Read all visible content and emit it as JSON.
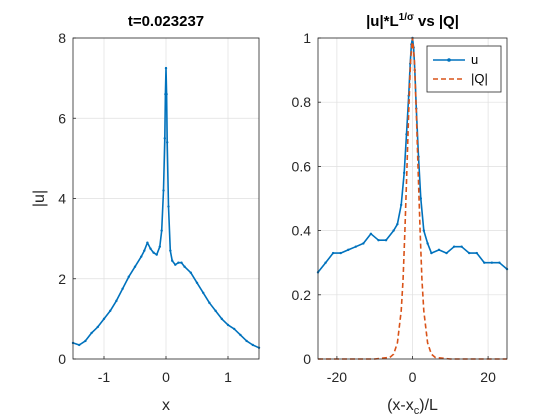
{
  "chart_data": [
    {
      "type": "line",
      "title": "t=0.023237",
      "xlabel": "x",
      "ylabel": "|u|",
      "xlim": [
        -1.5,
        1.5
      ],
      "ylim": [
        0,
        8
      ],
      "xticks": [
        -1,
        0,
        1
      ],
      "xtick_labels": [
        "-1",
        "0",
        "1"
      ],
      "yticks": [
        0,
        2,
        4,
        6,
        8
      ],
      "ytick_labels": [
        "0",
        "2",
        "4",
        "6",
        "8"
      ],
      "grid": true,
      "series": [
        {
          "color": "#0072bd",
          "marker": "dot",
          "x": [
            -1.5,
            -1.4,
            -1.3,
            -1.2,
            -1.1,
            -1.0,
            -0.9,
            -0.8,
            -0.7,
            -0.6,
            -0.5,
            -0.4,
            -0.35,
            -0.3,
            -0.25,
            -0.2,
            -0.15,
            -0.1,
            -0.07,
            -0.04,
            -0.02,
            -0.01,
            0.0,
            0.01,
            0.02,
            0.04,
            0.07,
            0.1,
            0.15,
            0.2,
            0.25,
            0.3,
            0.4,
            0.5,
            0.6,
            0.7,
            0.8,
            0.9,
            1.0,
            1.1,
            1.2,
            1.3,
            1.4,
            1.5
          ],
          "y": [
            0.4,
            0.35,
            0.45,
            0.65,
            0.8,
            1.0,
            1.2,
            1.45,
            1.75,
            2.05,
            2.3,
            2.55,
            2.7,
            2.9,
            2.75,
            2.65,
            2.6,
            2.8,
            3.2,
            4.2,
            5.5,
            6.6,
            7.25,
            6.6,
            5.4,
            3.8,
            2.7,
            2.45,
            2.35,
            2.4,
            2.4,
            2.3,
            2.15,
            1.9,
            1.65,
            1.4,
            1.2,
            1.0,
            0.85,
            0.75,
            0.6,
            0.45,
            0.35,
            0.28
          ]
        }
      ]
    },
    {
      "type": "line",
      "title": "|u|*L",
      "title_sup": "1/σ",
      "title_suffix": " vs |Q|",
      "xlabel": "(x-x",
      "xlabel_sub": "c",
      "xlabel_suffix": ")/L",
      "xlim": [
        -25,
        25
      ],
      "ylim": [
        0,
        1
      ],
      "xticks": [
        -20,
        0,
        20
      ],
      "xtick_labels": [
        "-20",
        "0",
        "20"
      ],
      "yticks": [
        0,
        0.2,
        0.4,
        0.6,
        0.8,
        1
      ],
      "ytick_labels": [
        "0",
        "0.2",
        "0.4",
        "0.6",
        "0.8",
        "1"
      ],
      "grid": true,
      "legend_position": "top-right",
      "series": [
        {
          "name": "u",
          "color": "#0072bd",
          "style": "solid-marker",
          "x": [
            -25,
            -23,
            -21,
            -19,
            -17,
            -15,
            -13,
            -11,
            -9,
            -7,
            -5,
            -4,
            -3,
            -2.2,
            -1.6,
            -1.0,
            -0.6,
            -0.3,
            0,
            0.3,
            0.6,
            1.0,
            1.6,
            2.2,
            3,
            4,
            5,
            7,
            9,
            11,
            13,
            15,
            17,
            19,
            21,
            23,
            25
          ],
          "y": [
            0.27,
            0.3,
            0.33,
            0.33,
            0.34,
            0.35,
            0.36,
            0.39,
            0.37,
            0.37,
            0.4,
            0.42,
            0.48,
            0.58,
            0.7,
            0.82,
            0.92,
            0.98,
            1.0,
            0.97,
            0.9,
            0.78,
            0.63,
            0.5,
            0.4,
            0.36,
            0.33,
            0.34,
            0.33,
            0.35,
            0.35,
            0.33,
            0.33,
            0.3,
            0.3,
            0.3,
            0.28
          ]
        },
        {
          "name": "|Q|",
          "color": "#d95319",
          "style": "dashed",
          "x": [
            -25,
            -10,
            -6,
            -5,
            -4,
            -3,
            -2.5,
            -2,
            -1.5,
            -1,
            -0.5,
            0,
            0.5,
            1,
            1.5,
            2,
            2.5,
            3,
            4,
            5,
            6,
            10,
            25
          ],
          "y": [
            0,
            0,
            0.005,
            0.015,
            0.05,
            0.15,
            0.25,
            0.4,
            0.58,
            0.77,
            0.93,
            1.0,
            0.93,
            0.77,
            0.58,
            0.4,
            0.25,
            0.15,
            0.05,
            0.015,
            0.005,
            0,
            0
          ]
        }
      ]
    }
  ]
}
